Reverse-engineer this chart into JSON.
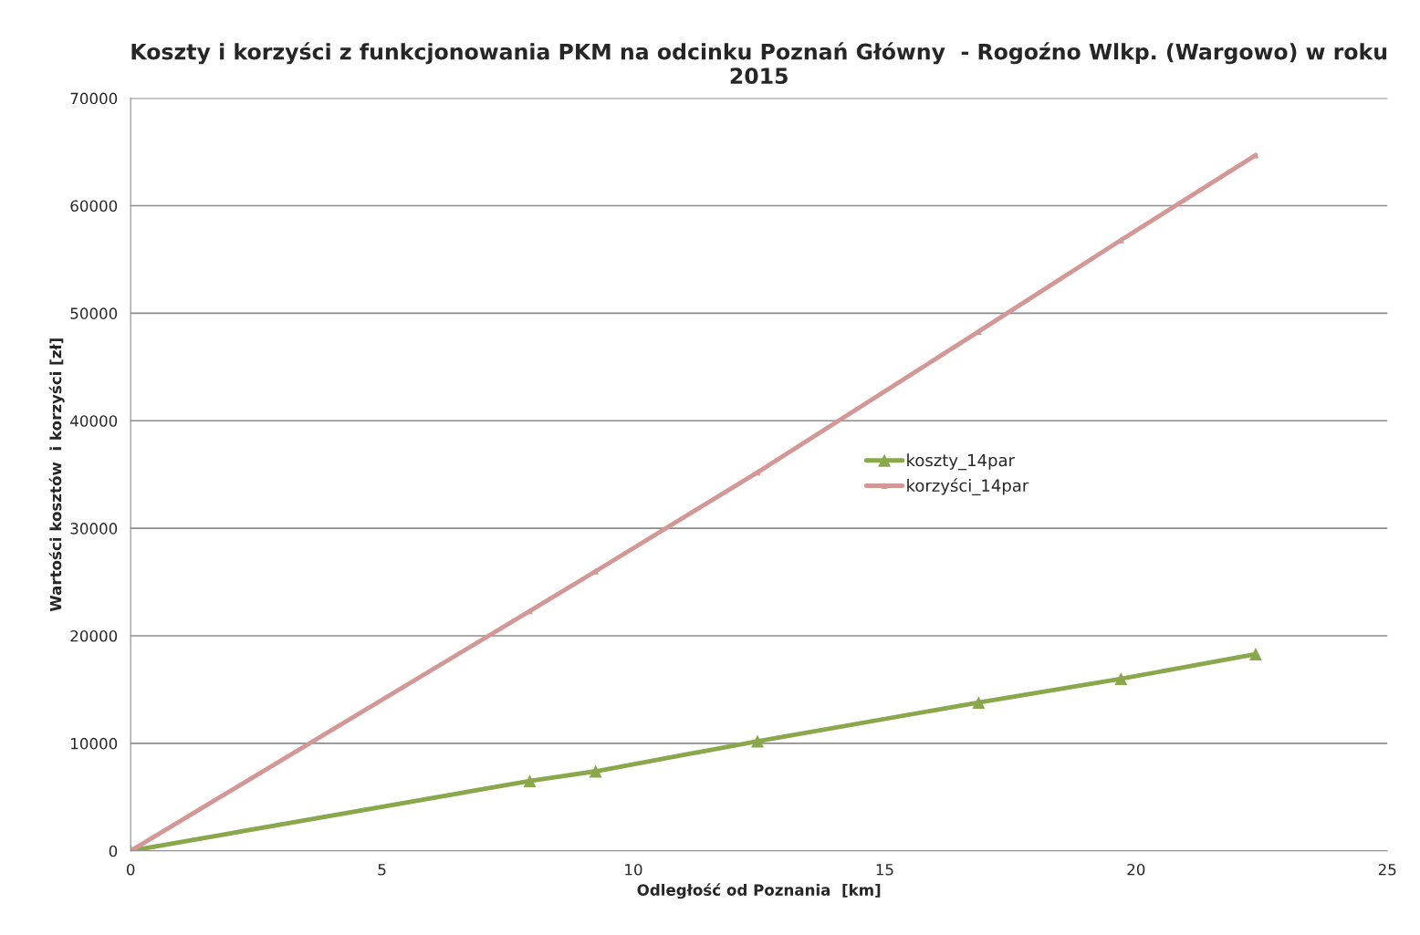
{
  "chart_data": {
    "type": "line",
    "title": "Koszty i korzyści z funkcjonowania PKM na odcinku Poznań Główny  - Rogoźno Wlkp. (Wargowo) w roku 2015",
    "xlabel": "Odległość od Poznania  [km]",
    "ylabel": "Wartości kosztów  i korzyści [zł]",
    "x": [
      0,
      7.94,
      9.25,
      12.47,
      16.87,
      19.7,
      22.38
    ],
    "series": [
      {
        "name": "koszty_14par",
        "color": "#8aa84b",
        "marker": "triangle",
        "values": [
          0,
          6500,
          7400,
          10200,
          13800,
          16000,
          18300
        ]
      },
      {
        "name": "korzyści_14par",
        "color": "#d39896",
        "marker": "triangle",
        "values": [
          0,
          22300,
          26000,
          35200,
          48300,
          56800,
          64700
        ]
      }
    ],
    "xlim": [
      0,
      25
    ],
    "xticks": [
      0,
      5,
      10,
      15,
      20,
      25
    ],
    "ylim": [
      0,
      70000
    ],
    "yticks": [
      0,
      10000,
      20000,
      30000,
      40000,
      50000,
      60000,
      70000
    ],
    "grid": "y",
    "legend": "center",
    "line_style": "solid"
  }
}
